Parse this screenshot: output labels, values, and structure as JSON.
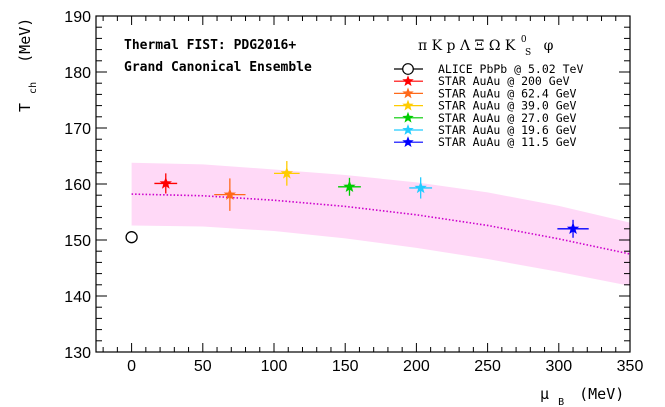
{
  "chart_data": {
    "type": "scatter",
    "xlabel": "μ_B (MeV)",
    "xlabel_main": "μ",
    "xlabel_sub": "B",
    "xlabel_unit": "(MeV)",
    "ylabel": "T_ch (MeV)",
    "ylabel_main": "T",
    "ylabel_sub": "ch",
    "ylabel_unit": "(MeV)",
    "xlim": [
      -25,
      350
    ],
    "ylim": [
      130,
      190
    ],
    "xticks": [
      0,
      50,
      100,
      150,
      200,
      250,
      300,
      350
    ],
    "yticks": [
      130,
      140,
      150,
      160,
      170,
      180,
      190
    ],
    "xtick_labels": [
      "0",
      "50",
      "100",
      "150",
      "200",
      "250",
      "300",
      "350"
    ],
    "ytick_labels": [
      "130",
      "140",
      "150",
      "160",
      "170",
      "180",
      "190"
    ],
    "annotations": {
      "line1": "Thermal FIST: PDG2016+",
      "line2": "Grand Canonical Ensemble",
      "particles": "π K p Λ Ξ Ω K",
      "particles_sup": "0",
      "particles_sub": "S",
      "particles_tail": "φ"
    },
    "legend_position": "top-right",
    "series": [
      {
        "name": "ALICE PbPb @ 5.02 TeV",
        "marker": "open-circle",
        "color": "#000000",
        "x": 0,
        "y": 150.5,
        "xerr": 0,
        "yerr": 0
      },
      {
        "name": "STAR AuAu @ 200 GeV",
        "marker": "star",
        "color": "#ff0000",
        "x": 24,
        "y": 160.1,
        "xerr": 8,
        "yerr": 1.8
      },
      {
        "name": "STAR AuAu @ 62.4 GeV",
        "marker": "star",
        "color": "#ff6a1a",
        "x": 69,
        "y": 158.1,
        "xerr": 11,
        "yerr": 2.9
      },
      {
        "name": "STAR AuAu @ 39.0 GeV",
        "marker": "star",
        "color": "#ffcc00",
        "x": 109,
        "y": 161.9,
        "xerr": 9,
        "yerr": 2.2
      },
      {
        "name": "STAR AuAu @ 27.0 GeV",
        "marker": "star",
        "color": "#00cc00",
        "x": 153,
        "y": 159.5,
        "xerr": 8,
        "yerr": 1.6
      },
      {
        "name": "STAR AuAu @ 19.6 GeV",
        "marker": "star",
        "color": "#22ccff",
        "x": 203,
        "y": 159.3,
        "xerr": 8,
        "yerr": 1.9
      },
      {
        "name": "STAR AuAu @ 11.5 GeV",
        "marker": "star",
        "color": "#0000ff",
        "x": 310,
        "y": 152.0,
        "xerr": 11,
        "yerr": 1.6
      }
    ],
    "band": {
      "color": "#ffd9f7",
      "center_color": "#cc00cc",
      "x": [
        0,
        50,
        100,
        150,
        200,
        250,
        300,
        350
      ],
      "center": [
        158.2,
        157.9,
        157.1,
        156.0,
        154.5,
        152.6,
        150.2,
        147.5
      ],
      "lower": [
        152.6,
        152.4,
        151.6,
        150.3,
        148.6,
        146.6,
        144.3,
        141.8
      ],
      "upper": [
        163.8,
        163.5,
        162.6,
        161.6,
        160.3,
        158.5,
        156.1,
        153.1
      ]
    }
  }
}
